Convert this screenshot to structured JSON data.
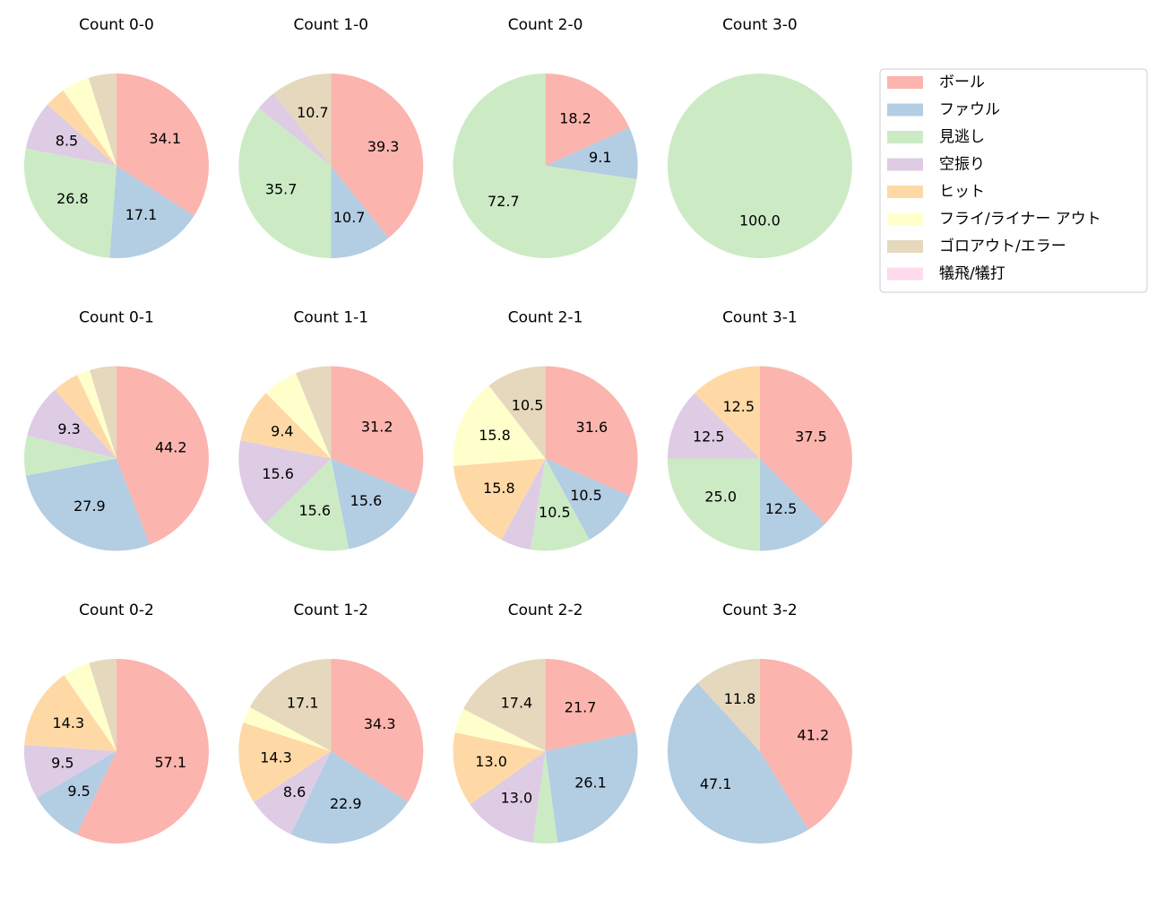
{
  "legend": {
    "labels": [
      "ボール",
      "ファウル",
      "見逃し",
      "空振り",
      "ヒット",
      "フライ/ライナー アウト",
      "ゴロアウト/エラー",
      "犠飛/犠打"
    ],
    "colors": [
      "#fbb4ae",
      "#b3cde3",
      "#ccebc5",
      "#decbe4",
      "#fed9a6",
      "#ffffcc",
      "#e5d8bd",
      "#fddaec"
    ]
  },
  "chart_data": [
    {
      "type": "pie",
      "title": "Count 0-0",
      "values": [
        34.1,
        17.1,
        26.8,
        8.5,
        3.7,
        4.9,
        4.9,
        0
      ],
      "value_labels": [
        "34.1",
        "17.1",
        "26.8",
        "8.5",
        null,
        null,
        null,
        null
      ]
    },
    {
      "type": "pie",
      "title": "Count 1-0",
      "values": [
        39.3,
        10.7,
        35.7,
        3.6,
        0,
        0,
        10.7,
        0
      ],
      "value_labels": [
        "39.3",
        "10.7",
        "35.7",
        null,
        null,
        null,
        "10.7",
        null
      ]
    },
    {
      "type": "pie",
      "title": "Count 2-0",
      "values": [
        18.2,
        9.1,
        72.7,
        0,
        0,
        0,
        0,
        0
      ],
      "value_labels": [
        "18.2",
        "9.1",
        "72.7",
        null,
        null,
        null,
        null,
        null
      ]
    },
    {
      "type": "pie",
      "title": "Count 3-0",
      "values": [
        0,
        0,
        100,
        0,
        0,
        0,
        0,
        0
      ],
      "value_labels": [
        null,
        null,
        "100.0",
        null,
        null,
        null,
        null,
        null
      ]
    },
    {
      "type": "pie",
      "title": "Count 0-1",
      "values": [
        44.2,
        27.9,
        7.0,
        9.3,
        4.7,
        2.3,
        4.7,
        0
      ],
      "value_labels": [
        "44.2",
        "27.9",
        null,
        "9.3",
        null,
        null,
        null,
        null
      ]
    },
    {
      "type": "pie",
      "title": "Count 1-1",
      "values": [
        31.2,
        15.6,
        15.6,
        15.6,
        9.4,
        6.2,
        6.2,
        0
      ],
      "value_labels": [
        "31.2",
        "15.6",
        "15.6",
        "15.6",
        "9.4",
        null,
        null,
        null
      ]
    },
    {
      "type": "pie",
      "title": "Count 2-1",
      "values": [
        31.6,
        10.5,
        10.5,
        5.3,
        15.8,
        15.8,
        10.5,
        0
      ],
      "value_labels": [
        "31.6",
        "10.5",
        "10.5",
        null,
        "15.8",
        "15.8",
        "10.5",
        null
      ]
    },
    {
      "type": "pie",
      "title": "Count 3-1",
      "values": [
        37.5,
        12.5,
        25,
        12.5,
        12.5,
        0,
        0,
        0
      ],
      "value_labels": [
        "37.5",
        "12.5",
        "25.0",
        "12.5",
        "12.5",
        null,
        null,
        null
      ]
    },
    {
      "type": "pie",
      "title": "Count 0-2",
      "values": [
        57.1,
        9.5,
        0,
        9.5,
        14.3,
        4.8,
        4.8,
        0
      ],
      "value_labels": [
        "57.1",
        "9.5",
        null,
        "9.5",
        "14.3",
        null,
        null,
        null
      ]
    },
    {
      "type": "pie",
      "title": "Count 1-2",
      "values": [
        34.3,
        22.9,
        0,
        8.6,
        14.3,
        2.9,
        17.1,
        0
      ],
      "value_labels": [
        "34.3",
        "22.9",
        null,
        "8.6",
        "14.3",
        null,
        "17.1",
        null
      ]
    },
    {
      "type": "pie",
      "title": "Count 2-2",
      "values": [
        21.7,
        26.1,
        4.3,
        13.0,
        13.0,
        4.3,
        17.4,
        0
      ],
      "value_labels": [
        "21.7",
        "26.1",
        null,
        "13.0",
        "13.0",
        null,
        "17.4",
        null
      ]
    },
    {
      "type": "pie",
      "title": "Count 3-2",
      "values": [
        41.2,
        47.1,
        0,
        0,
        0,
        0,
        11.8,
        0
      ],
      "value_labels": [
        "41.2",
        "47.1",
        null,
        null,
        null,
        null,
        "11.8",
        null
      ]
    }
  ]
}
